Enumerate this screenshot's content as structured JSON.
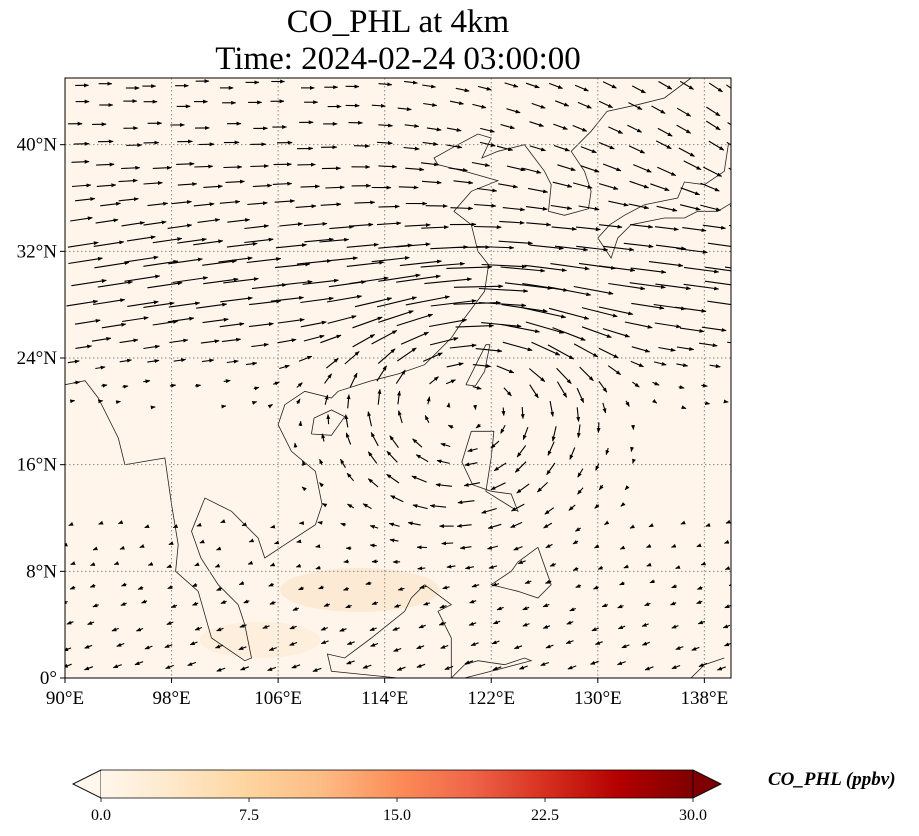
{
  "title": {
    "line1": "CO_PHL at 4km",
    "line2": "Time: 2024-02-24 03:00:00"
  },
  "map": {
    "extent_lon": [
      90,
      140
    ],
    "extent_lat": [
      0,
      45
    ],
    "x_ticks": [
      {
        "value": 90,
        "label": "90°E"
      },
      {
        "value": 98,
        "label": "98°E"
      },
      {
        "value": 106,
        "label": "106°E"
      },
      {
        "value": 114,
        "label": "114°E"
      },
      {
        "value": 122,
        "label": "122°E"
      },
      {
        "value": 130,
        "label": "130°E"
      },
      {
        "value": 138,
        "label": "138°E"
      }
    ],
    "y_ticks": [
      {
        "value": 0,
        "label": "0°"
      },
      {
        "value": 8,
        "label": "8°N"
      },
      {
        "value": 16,
        "label": "16°N"
      },
      {
        "value": 24,
        "label": "24°N"
      },
      {
        "value": 32,
        "label": "32°N"
      },
      {
        "value": 40,
        "label": "40°N"
      }
    ],
    "gridlines": "dotted",
    "background_color": "#fff5eb",
    "field": "CO_PHL concentration with wind vectors"
  },
  "colorbar": {
    "label": "CO_PHL (ppbv)",
    "min": 0.0,
    "max": 30.0,
    "extend": "both",
    "colormap": "OrRd",
    "ticks": [
      {
        "value": 0.0,
        "label": "0.0"
      },
      {
        "value": 7.5,
        "label": "7.5"
      },
      {
        "value": 15.0,
        "label": "15.0"
      },
      {
        "value": 22.5,
        "label": "22.5"
      },
      {
        "value": 30.0,
        "label": "30.0"
      }
    ],
    "stops": [
      "#fff7ec",
      "#fee8c8",
      "#fdd49e",
      "#fdbb84",
      "#fc8d59",
      "#ef6548",
      "#d7301f",
      "#b30000",
      "#7f0000"
    ]
  }
}
